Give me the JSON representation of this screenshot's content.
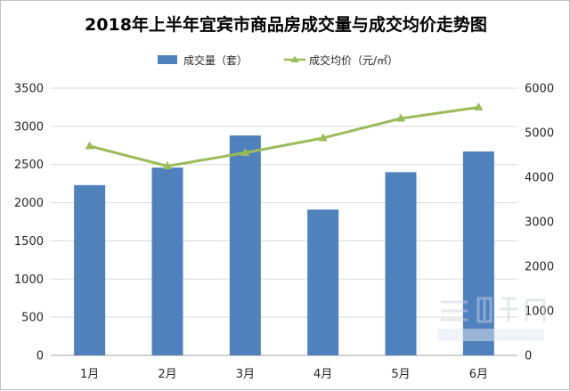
{
  "chart_data": {
    "type": "bar",
    "title": "2018年上半年宜宾市商品房成交量与成交均价走势图",
    "categories": [
      "1月",
      "2月",
      "3月",
      "4月",
      "5月",
      "6月"
    ],
    "series": [
      {
        "name": "成交量（套）",
        "type": "bar",
        "axis": "left",
        "color": "#4f81bd",
        "values": [
          2230,
          2460,
          2880,
          1910,
          2400,
          2670
        ]
      },
      {
        "name": "成交均价（元/㎡）",
        "type": "line",
        "axis": "right",
        "color": "#9bbb59",
        "values": [
          4700,
          4250,
          4550,
          4880,
          5320,
          5570
        ]
      }
    ],
    "y_left": {
      "min": 0,
      "max": 3500,
      "ticks": [
        0,
        500,
        1000,
        1500,
        2000,
        2500,
        3000,
        3500
      ]
    },
    "y_right": {
      "min": 0,
      "max": 6000,
      "ticks": [
        0,
        1000,
        2000,
        3000,
        4000,
        5000,
        6000
      ]
    },
    "legend_position": "top-center",
    "grid": true
  }
}
